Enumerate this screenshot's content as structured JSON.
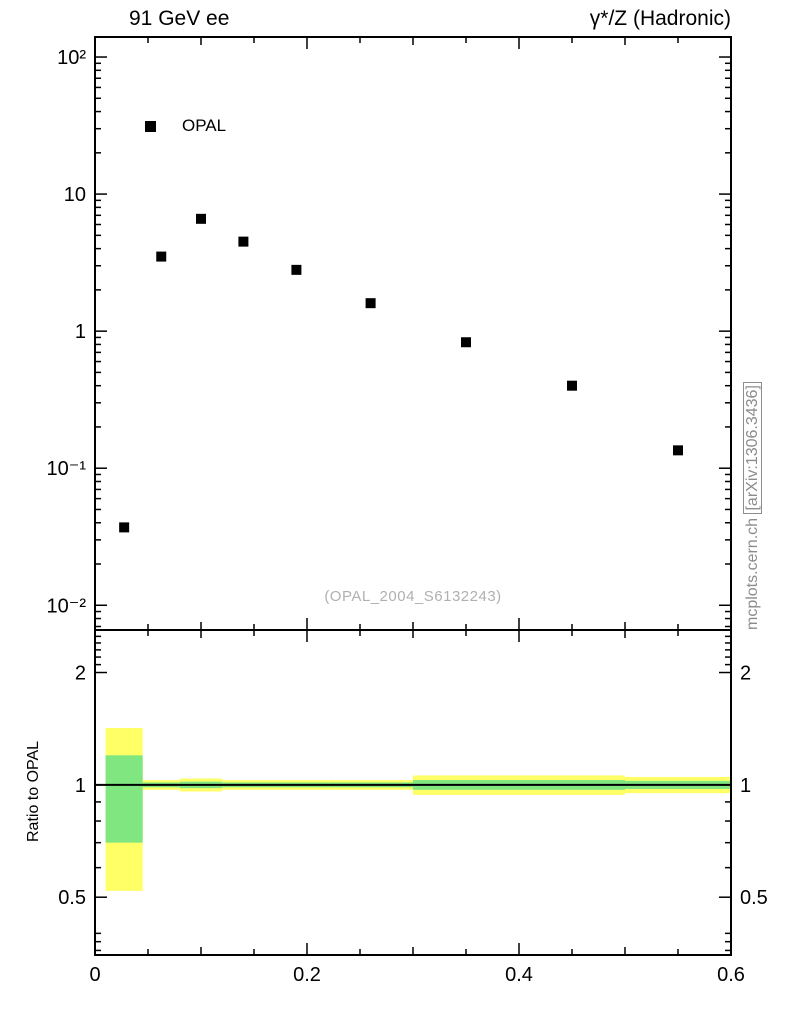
{
  "header": {
    "left_title": "91 GeV ee",
    "right_title": "γ*/Z (Hadronic)"
  },
  "legend": {
    "label": "OPAL"
  },
  "watermark": "(OPAL_2004_S6132243)",
  "side_note": {
    "site": "mcplots.cern.ch ",
    "arxiv": "[arXiv:1306.3436]"
  },
  "ratio_panel": {
    "ylabel": "Ratio to OPAL"
  },
  "chart_data": [
    {
      "type": "scatter",
      "name": "main-distribution",
      "series_label": "OPAL",
      "x": [
        0.0275,
        0.0625,
        0.1,
        0.14,
        0.19,
        0.26,
        0.35,
        0.45,
        0.55
      ],
      "y": [
        0.037,
        3.5,
        6.6,
        4.5,
        2.8,
        1.6,
        0.83,
        0.4,
        0.135
      ],
      "xlim": [
        0,
        0.6
      ],
      "ylim": [
        0.0066,
        140
      ],
      "yscale": "log",
      "yticks": [
        {
          "value": 100,
          "label": "10²"
        },
        {
          "value": 10,
          "label": "10"
        },
        {
          "value": 1,
          "label": "1"
        },
        {
          "value": 0.1,
          "label": "10⁻¹"
        },
        {
          "value": 0.01,
          "label": "10⁻²"
        }
      ],
      "marker": {
        "shape": "square",
        "color": "#000000",
        "size": 10
      },
      "grid": false,
      "legend_position": "upper-left-inside"
    },
    {
      "type": "band-ratio",
      "name": "ratio-to-data",
      "ylabel": "Ratio to OPAL",
      "xlim": [
        0,
        0.6
      ],
      "ylim": [
        0.35,
        2.6
      ],
      "yscale": "log",
      "reference_line": 1,
      "yticks": [
        {
          "value": 2,
          "label": "2"
        },
        {
          "value": 1,
          "label": "1"
        },
        {
          "value": 0.5,
          "label": "0.5"
        }
      ],
      "yminor": [
        0.36,
        0.38,
        0.4,
        0.6,
        0.7,
        0.8,
        0.9,
        2.1,
        2.2,
        2.3,
        2.4,
        2.5
      ],
      "xticks": [
        {
          "value": 0,
          "label": "0"
        },
        {
          "value": 0.2,
          "label": "0.2"
        },
        {
          "value": 0.4,
          "label": "0.4"
        },
        {
          "value": 0.6,
          "label": "0.6"
        }
      ],
      "bins": [
        {
          "x0": 0.01,
          "x1": 0.045,
          "yellow": [
            0.52,
            1.42
          ],
          "green": [
            0.7,
            1.2
          ]
        },
        {
          "x0": 0.045,
          "x1": 0.08,
          "yellow": [
            0.97,
            1.03
          ],
          "green": [
            0.985,
            1.015
          ]
        },
        {
          "x0": 0.08,
          "x1": 0.12,
          "yellow": [
            0.96,
            1.04
          ],
          "green": [
            0.98,
            1.02
          ]
        },
        {
          "x0": 0.12,
          "x1": 0.16,
          "yellow": [
            0.97,
            1.03
          ],
          "green": [
            0.985,
            1.015
          ]
        },
        {
          "x0": 0.16,
          "x1": 0.22,
          "yellow": [
            0.97,
            1.03
          ],
          "green": [
            0.985,
            1.015
          ]
        },
        {
          "x0": 0.22,
          "x1": 0.3,
          "yellow": [
            0.97,
            1.03
          ],
          "green": [
            0.985,
            1.015
          ]
        },
        {
          "x0": 0.3,
          "x1": 0.4,
          "yellow": [
            0.94,
            1.06
          ],
          "green": [
            0.97,
            1.03
          ]
        },
        {
          "x0": 0.4,
          "x1": 0.5,
          "yellow": [
            0.94,
            1.06
          ],
          "green": [
            0.97,
            1.03
          ]
        },
        {
          "x0": 0.5,
          "x1": 0.6,
          "yellow": [
            0.95,
            1.05
          ],
          "green": [
            0.975,
            1.025
          ]
        }
      ],
      "colors": {
        "yellow": "#ffff66",
        "green": "#80e680",
        "reference": "#000000"
      }
    }
  ]
}
